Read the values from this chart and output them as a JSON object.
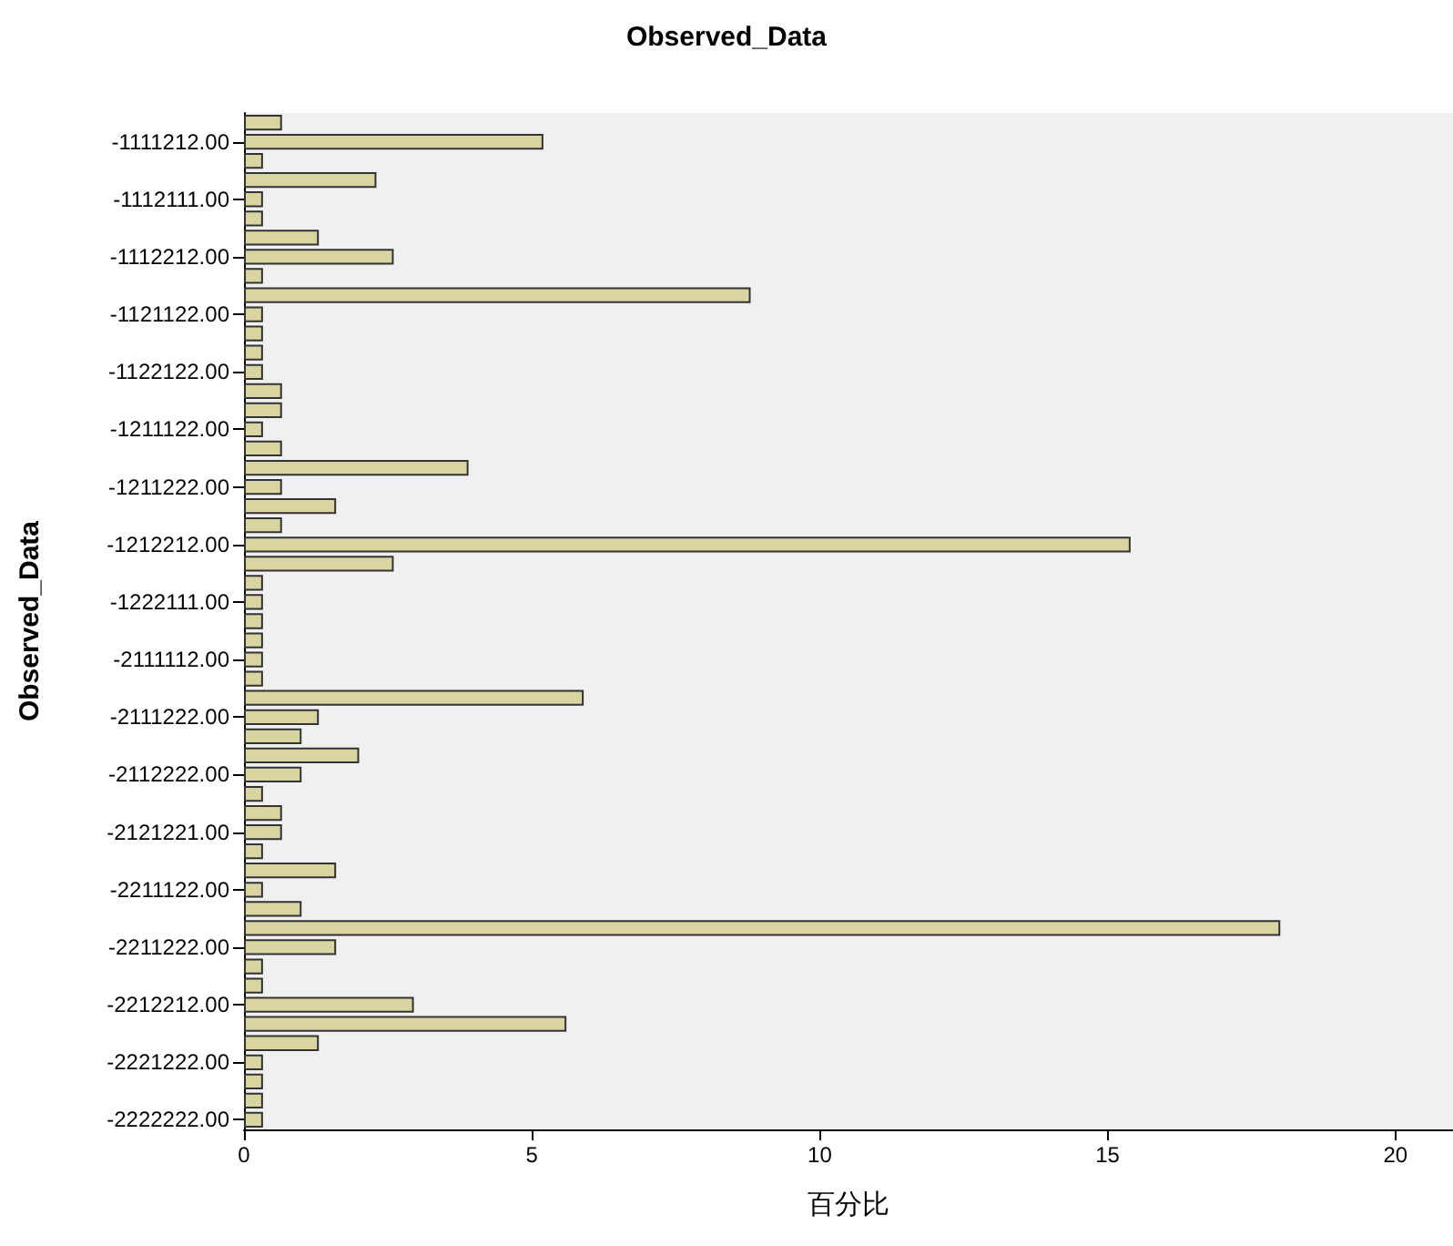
{
  "chart_data": {
    "type": "bar",
    "orientation": "horizontal",
    "title": "Observed_Data",
    "xlabel": "百分比",
    "ylabel": "Observed_Data",
    "categories": [
      null,
      "-1111212.00",
      null,
      null,
      "-1112111.00",
      null,
      null,
      "-1112212.00",
      null,
      null,
      "-1121122.00",
      null,
      null,
      "-1122122.00",
      null,
      null,
      "-1211122.00",
      null,
      null,
      "-1211222.00",
      null,
      null,
      "-1212212.00",
      null,
      null,
      "-1222111.00",
      null,
      null,
      "-2111112.00",
      null,
      null,
      "-2111222.00",
      null,
      null,
      "-2112222.00",
      null,
      null,
      "-2121221.00",
      null,
      null,
      "-2211122.00",
      null,
      null,
      "-2211222.00",
      null,
      null,
      "-2212212.00",
      null,
      null,
      "-2221222.00",
      null,
      null,
      "-2222222.00"
    ],
    "values": [
      0.66,
      5.2,
      0.33,
      2.3,
      0.33,
      0.33,
      1.3,
      2.6,
      0.33,
      8.8,
      0.33,
      0.33,
      0.33,
      0.33,
      0.66,
      0.66,
      0.33,
      0.66,
      3.9,
      0.66,
      1.6,
      0.66,
      15.4,
      2.6,
      0.33,
      0.33,
      0.33,
      0.33,
      0.33,
      0.33,
      5.9,
      1.3,
      1.0,
      2.0,
      1.0,
      0.33,
      0.66,
      0.66,
      0.33,
      1.6,
      0.33,
      1.0,
      18.0,
      1.6,
      0.33,
      0.33,
      2.95,
      5.6,
      1.3,
      0.33,
      0.33,
      0.33,
      0.33
    ],
    "color": "#d9d5a3",
    "xlim": [
      0,
      21
    ],
    "xticks": [
      0,
      5,
      10,
      15,
      20
    ],
    "grid": false
  }
}
